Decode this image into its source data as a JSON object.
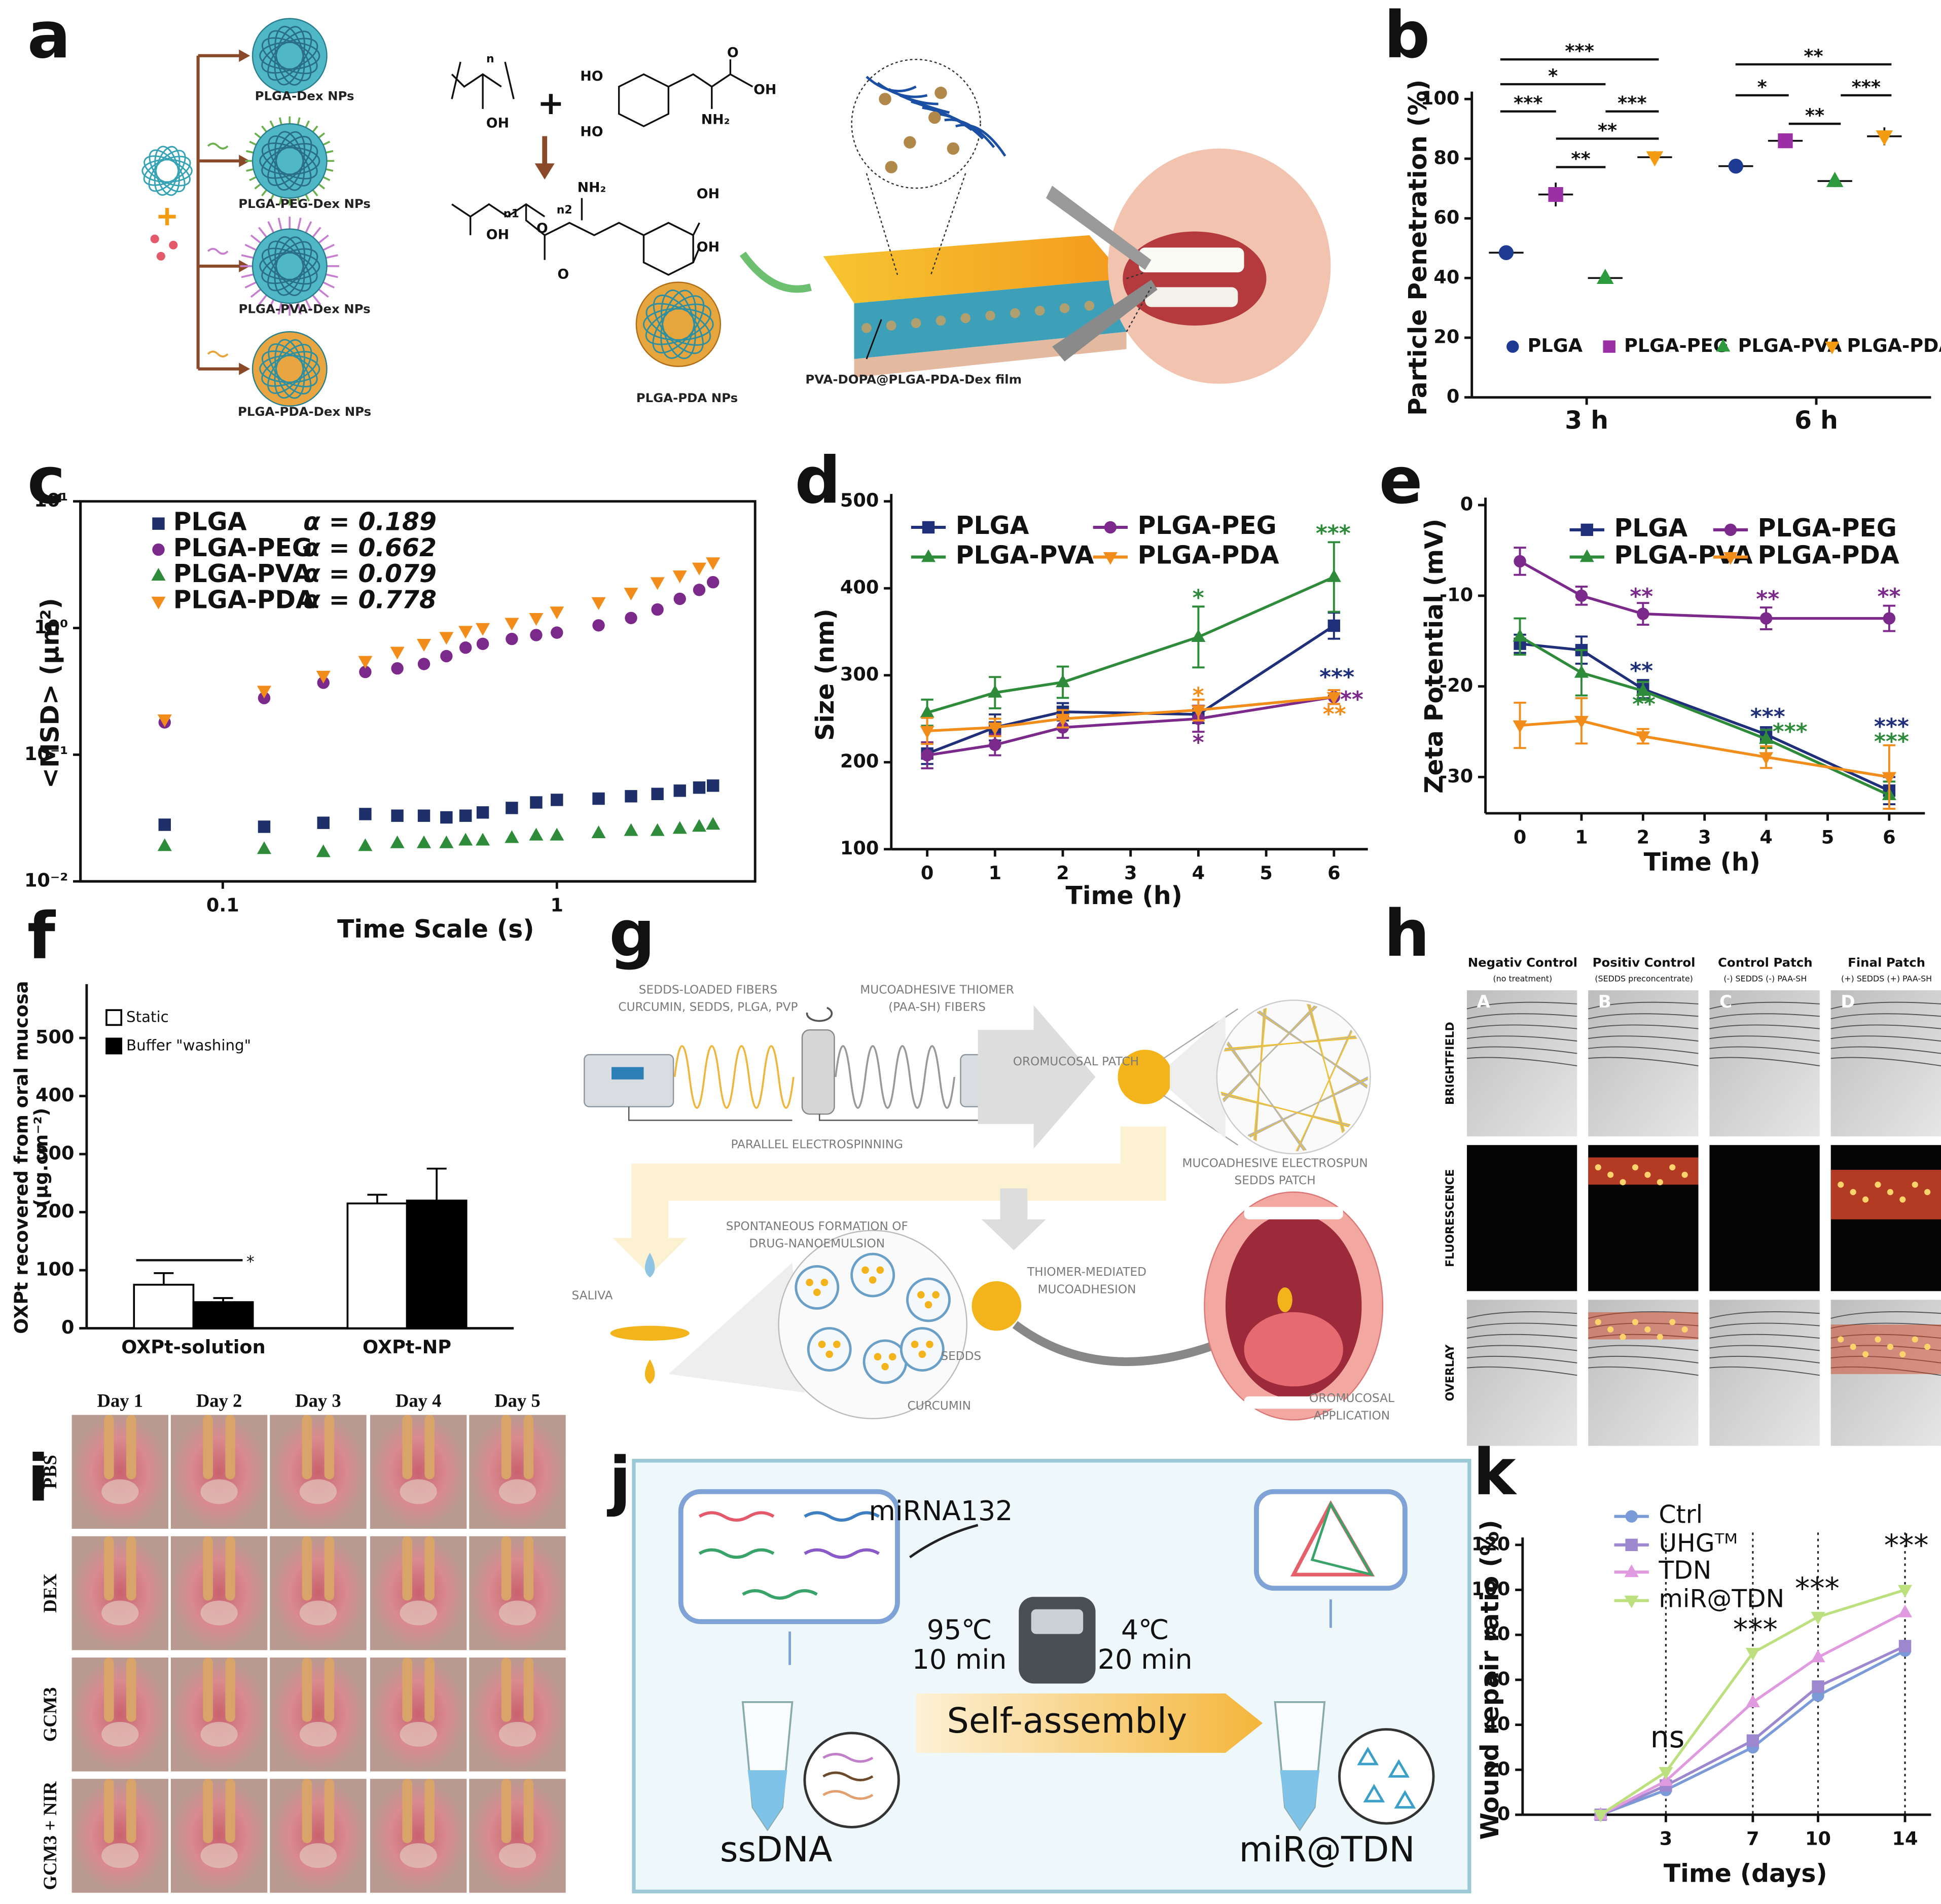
{
  "panel_letters": [
    "a",
    "b",
    "c",
    "d",
    "e",
    "f",
    "g",
    "h",
    "i",
    "j",
    "k"
  ],
  "chart_data": [
    {
      "type": "dot",
      "categories": [
        "3 h",
        "6 h"
      ],
      "y_label": "Particle Penetration (%)",
      "ylim": [
        0,
        100
      ],
      "yticks": [
        0,
        20,
        40,
        60,
        80,
        100
      ],
      "legend": "lower center",
      "series": [
        {
          "name": "PLGA",
          "color": "#1f3a93",
          "marker": "circle",
          "values": [
            48.5,
            77.5
          ],
          "errors": [
            2,
            2
          ]
        },
        {
          "name": "PLGA-PEG",
          "color": "#9b2fa6",
          "marker": "square",
          "values": [
            68,
            86
          ],
          "errors": [
            4,
            1.5
          ]
        },
        {
          "name": "PLGA-PVA",
          "color": "#2e9a3e",
          "marker": "triangle",
          "values": [
            40,
            72.5
          ],
          "errors": [
            1.5,
            2
          ]
        },
        {
          "name": "PLGA-PDA",
          "color": "#f39c12",
          "marker": "triangle-down",
          "values": [
            80.5,
            87.5
          ],
          "errors": [
            2,
            3
          ]
        }
      ],
      "annotations": [
        "***",
        "*",
        "***",
        "***",
        "**",
        "**",
        "**",
        "*",
        "***",
        "**"
      ]
    },
    {
      "type": "scatter",
      "x_label": "Time Scale (s)",
      "y_label": "<MSD> (μm²)",
      "x_log": true,
      "y_log": true,
      "xlim": [
        0.0375,
        3.92
      ],
      "ylim": [
        0.01,
        10
      ],
      "xticks": [
        0.1,
        1
      ],
      "yticks": [
        {
          "value": 0.01,
          "label": "10⁻²"
        },
        {
          "value": 0.1,
          "label": "10⁻¹"
        },
        {
          "value": 1,
          "label": "10⁰"
        },
        {
          "value": 10,
          "label": "10¹"
        }
      ],
      "legend": "upper left",
      "x": [
        0.067,
        0.133,
        0.2,
        0.267,
        0.333,
        0.4,
        0.467,
        0.533,
        0.6,
        0.733,
        0.867,
        1.0,
        1.333,
        1.667,
        2.0,
        2.333,
        2.667,
        2.933
      ],
      "series": [
        {
          "name": "PLGA",
          "label": "α = 0.189",
          "color": "#1f2f6a",
          "marker": "square",
          "values": [
            0.028,
            0.027,
            0.029,
            0.034,
            0.033,
            0.033,
            0.032,
            0.033,
            0.035,
            0.038,
            0.042,
            0.044,
            0.045,
            0.047,
            0.049,
            0.052,
            0.055,
            0.057
          ]
        },
        {
          "name": "PLGA-PEG",
          "label": "α = 0.662",
          "color": "#7b2a8c",
          "marker": "circle",
          "values": [
            0.18,
            0.28,
            0.37,
            0.45,
            0.48,
            0.52,
            0.6,
            0.7,
            0.75,
            0.82,
            0.88,
            0.92,
            1.05,
            1.2,
            1.4,
            1.7,
            2.0,
            2.3
          ]
        },
        {
          "name": "PLGA-PVA",
          "label": "α = 0.079",
          "color": "#2e8b3a",
          "marker": "triangle",
          "values": [
            0.019,
            0.018,
            0.017,
            0.019,
            0.02,
            0.02,
            0.02,
            0.021,
            0.021,
            0.022,
            0.023,
            0.023,
            0.024,
            0.025,
            0.025,
            0.026,
            0.027,
            0.028
          ]
        },
        {
          "name": "PLGA-PDA",
          "label": "α = 0.778",
          "color": "#f28c1a",
          "marker": "triangle-down",
          "values": [
            0.19,
            0.32,
            0.42,
            0.55,
            0.65,
            0.75,
            0.85,
            0.95,
            1.0,
            1.1,
            1.2,
            1.35,
            1.6,
            1.9,
            2.3,
            2.6,
            3.0,
            3.3
          ]
        }
      ]
    },
    {
      "type": "line",
      "x_label": "Time (h)",
      "y_label": "Size (nm)",
      "xlim": [
        -0.53,
        6.5
      ],
      "ylim": [
        100,
        500
      ],
      "xticks": [
        0,
        1,
        2,
        3,
        4,
        5,
        6
      ],
      "yticks": [
        100,
        200,
        300,
        400,
        500
      ],
      "legend": "upper left",
      "x": [
        0,
        1,
        2,
        4,
        6
      ],
      "series": [
        {
          "name": "PLGA",
          "color": "#1f2f7a",
          "marker": "square",
          "values": [
            210,
            240,
            258,
            255,
            357
          ],
          "errors": [
            12,
            15,
            10,
            10,
            15
          ]
        },
        {
          "name": "PLGA-PEG",
          "color": "#7b2a8c",
          "marker": "circle",
          "values": [
            208,
            220,
            240,
            250,
            275
          ],
          "errors": [
            15,
            12,
            12,
            15,
            8
          ]
        },
        {
          "name": "PLGA-PVA",
          "color": "#2e8b3a",
          "marker": "triangle",
          "values": [
            257,
            280,
            292,
            344,
            413
          ],
          "errors": [
            15,
            18,
            18,
            35,
            40
          ]
        },
        {
          "name": "PLGA-PDA",
          "color": "#f28c1a",
          "marker": "triangle-down",
          "values": [
            236,
            240,
            250,
            260,
            275
          ],
          "errors": [
            15,
            10,
            10,
            12,
            8
          ]
        }
      ],
      "annotations": [
        {
          "text": "***",
          "color": "#2e8b3a"
        },
        {
          "text": "*",
          "color": "#2e8b3a"
        },
        {
          "text": "*",
          "color": "#f28c1a"
        },
        {
          "text": "*",
          "color": "#7b2a8c"
        },
        {
          "text": "***",
          "color": "#1f2f7a"
        },
        {
          "text": "**",
          "color": "#7b2a8c"
        },
        {
          "text": "**",
          "color": "#f28c1a"
        }
      ]
    },
    {
      "type": "line",
      "x_label": "Time (h)",
      "y_label": "Zeta Potential (mV)",
      "xlim": [
        -0.56,
        6.58
      ],
      "ylim": [
        -34,
        0
      ],
      "xticks": [
        0,
        1,
        2,
        3,
        4,
        5,
        6
      ],
      "yticks": [
        -30,
        -20,
        -10,
        0
      ],
      "legend": "upper center",
      "x": [
        0,
        1,
        2,
        4,
        6
      ],
      "series": [
        {
          "name": "PLGA",
          "color": "#1f2f7a",
          "marker": "square",
          "values": [
            -15.3,
            -16,
            -20.3,
            -25.3,
            -31.5
          ],
          "errors": [
            1,
            1.5,
            1,
            0.8,
            1.5
          ]
        },
        {
          "name": "PLGA-PEG",
          "color": "#7b2a8c",
          "marker": "circle",
          "values": [
            -6.2,
            -10,
            -12,
            -12.5,
            -12.5
          ],
          "errors": [
            1.5,
            1,
            1.2,
            1.2,
            1.4
          ]
        },
        {
          "name": "PLGA-PVA",
          "color": "#2e8b3a",
          "marker": "triangle",
          "values": [
            -14.5,
            -18.5,
            -20.5,
            -25.8,
            -32
          ],
          "errors": [
            2,
            2.5,
            1,
            1,
            1.5
          ]
        },
        {
          "name": "PLGA-PDA",
          "color": "#f28c1a",
          "marker": "triangle-down",
          "values": [
            -24.3,
            -23.8,
            -25.5,
            -27.8,
            -30
          ],
          "errors": [
            2.5,
            2.5,
            0.8,
            1.2,
            3.5
          ]
        }
      ],
      "annotations": [
        {
          "text": "**",
          "color": "#7b2a8c"
        },
        {
          "text": "**",
          "color": "#7b2a8c"
        },
        {
          "text": "**",
          "color": "#7b2a8c"
        },
        {
          "text": "**",
          "color": "#1f2f7a"
        },
        {
          "text": "**",
          "color": "#2e8b3a"
        },
        {
          "text": "***",
          "color": "#1f2f7a"
        },
        {
          "text": "***",
          "color": "#2e8b3a"
        },
        {
          "text": "***",
          "color": "#1f2f7a"
        },
        {
          "text": "***",
          "color": "#2e8b3a"
        }
      ]
    },
    {
      "type": "bar",
      "categories": [
        "OXPt-solution",
        "OXPt-NP"
      ],
      "y_label": [
        "OXPt recovered from oral mucosa",
        "(μg.cm⁻²)"
      ],
      "ylim": [
        0,
        580
      ],
      "yticks": [
        0,
        100,
        200,
        300,
        400,
        500
      ],
      "legend": "upper left",
      "series": [
        {
          "name": "Static",
          "color": "#ffffff",
          "values": [
            75,
            215
          ],
          "errors": [
            20,
            15
          ]
        },
        {
          "name": "Buffer \"washing\"",
          "color": "#000000",
          "values": [
            45,
            220
          ],
          "errors": [
            7,
            55
          ]
        }
      ],
      "annotations": [
        "*"
      ]
    },
    {
      "type": "line",
      "x_label": "Time (days)",
      "y_label": "Wound repair ratio (%)",
      "xlim": [
        -3.59,
        15.2
      ],
      "ylim": [
        0,
        120
      ],
      "xticks": [
        3,
        7,
        10,
        14
      ],
      "yticks": [
        0,
        20,
        40,
        60,
        80,
        100,
        120
      ],
      "vlines": true,
      "legend": "upper left",
      "x": [
        0,
        3,
        7,
        10,
        14
      ],
      "series": [
        {
          "name": "Ctrl",
          "color": "#7a9ad8",
          "marker": "circle",
          "values": [
            0,
            11,
            30,
            53,
            73
          ]
        },
        {
          "name": "UHGᵀᴹ",
          "color": "#9d88cf",
          "marker": "square",
          "values": [
            0,
            13,
            33,
            57,
            75
          ]
        },
        {
          "name": "TDN",
          "color": "#e09ae0",
          "marker": "triangle",
          "values": [
            0,
            15,
            50,
            70,
            90
          ]
        },
        {
          "name": "miR@TDN",
          "color": "#bde07f",
          "marker": "triangle-down",
          "values": [
            0,
            19,
            72,
            88,
            100
          ]
        }
      ],
      "annotations": [
        "ns",
        "***",
        "***",
        "***"
      ]
    }
  ],
  "panel_a": {
    "labels": [
      "PLGA-Dex NPs",
      "PLGA-PEG-Dex NPs",
      "PLGA-PVA-Dex NPs",
      "PLGA-PDA-Dex NPs"
    ]
  },
  "panel_b_scheme": {
    "labels": [
      "PLGA-PDA NPs",
      "PVA-DOPA@PLGA-PDA-Dex film"
    ],
    "chem": [
      "n",
      "OH",
      "+",
      "HO",
      "HO",
      "O",
      "OH",
      "NH₂",
      "n1",
      "n2",
      "OH",
      "O",
      "NH₂",
      "OH",
      "OH",
      "O"
    ]
  },
  "panel_g": {
    "texts": [
      "SEDDS-LOADED FIBERS",
      "CURCUMIN, SEDDS, PLGA, PVP",
      "MUCOADHESIVE THIOMER",
      "(PAA-SH) FIBERS",
      "OROMUCOSAL PATCH",
      "PARALLEL ELECTROSPINNING",
      "MUCOADHESIVE ELECTROSPUN",
      "SEDDS PATCH",
      "SPONTANEOUS FORMATION OF",
      "DRUG-NANOEMULSION",
      "SALIVA",
      "SEDDS",
      "CURCUMIN",
      "THIOMER-MEDIATED",
      "MUCOADHESION",
      "OROMUCOSAL",
      "APPLICATION"
    ]
  },
  "panel_h": {
    "columns": [
      {
        "title": "Negativ Control",
        "sub": "(no treatment)"
      },
      {
        "title": "Positiv Control",
        "sub": "(SEDDS preconcentrate)"
      },
      {
        "title": "Control Patch",
        "sub": "(-) SEDDS (-) PAA-SH"
      },
      {
        "title": "Final Patch",
        "sub": "(+) SEDDS (+) PAA-SH"
      }
    ],
    "rows": [
      "BRIGHTFIELD",
      "FLUORESCENCE",
      "OVERLAY"
    ],
    "tile_letters": [
      "A",
      "B",
      "C",
      "D"
    ]
  },
  "panel_i": {
    "days": [
      "Day 1",
      "Day 2",
      "Day 3",
      "Day 4",
      "Day 5"
    ],
    "rows": [
      "PBS",
      "DEX",
      "GCM3",
      "GCM3 + NIR"
    ]
  },
  "panel_j": {
    "texts": [
      "miRNA132",
      "95℃",
      "10 min",
      "4℃",
      "20 min",
      "Self-assembly",
      "ssDNA",
      "miR@TDN"
    ]
  }
}
